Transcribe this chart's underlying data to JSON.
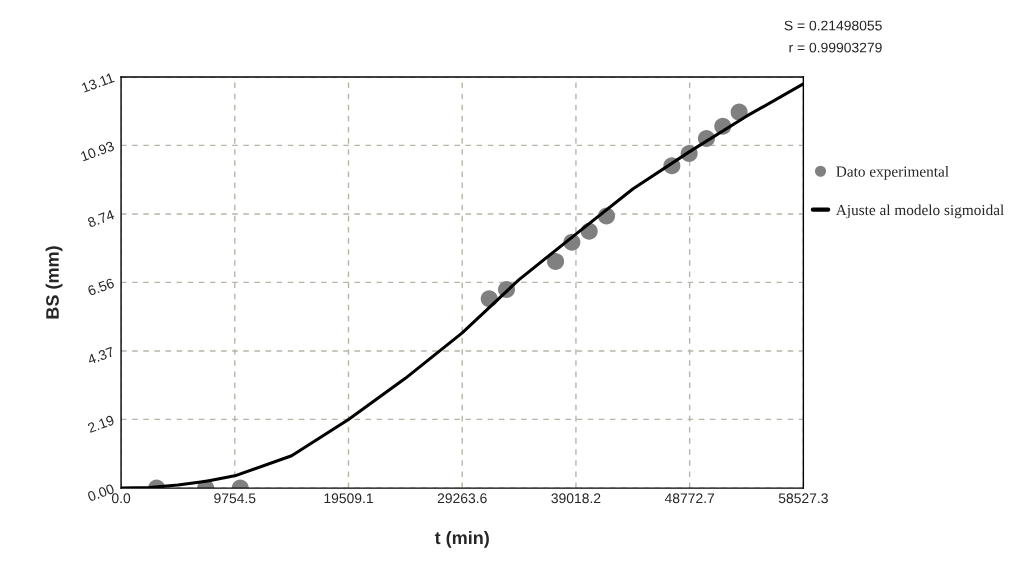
{
  "chart_data": {
    "type": "scatter",
    "xlabel": "t (min)",
    "ylabel": "BS (mm)",
    "annotations": [
      "S = 0.21498055",
      "r = 0.99903279"
    ],
    "series": [
      {
        "name": "Dato experimental",
        "color": "#808080",
        "marker": "circle",
        "x": [
          3051,
          7256,
          10224,
          31580,
          33065,
          37270,
          38672,
          40156,
          41640,
          47247,
          48731,
          50215,
          51616,
          53018
        ],
        "values": [
          0.0,
          0.0,
          0.0,
          6.04,
          6.33,
          7.23,
          7.84,
          8.19,
          8.68,
          10.28,
          10.67,
          11.15,
          11.54,
          11.99
        ]
      },
      {
        "name": "Ajuste al modelo sigmoidal",
        "type": "line",
        "color": "#000000",
        "marker": "none",
        "line_style": "solid",
        "x": [
          0,
          2438,
          4877,
          7316,
          9754,
          14631,
          19509,
          24386,
          29263,
          34141,
          39018,
          43895,
          48772,
          53650,
          58527
        ],
        "values": [
          0.0,
          0.02,
          0.1,
          0.22,
          0.39,
          1.03,
          2.19,
          3.5,
          4.95,
          6.65,
          8.1,
          9.54,
          10.73,
          11.86,
          12.89
        ]
      }
    ],
    "xlim": [
      0,
      58527.3
    ],
    "ylim": [
      0,
      13.11
    ],
    "xticks": [
      {
        "value": 0,
        "label": "0.0"
      },
      9754.5,
      19509.1,
      29263.6,
      39018.2,
      48772.7,
      58527.3
    ],
    "yticks": [
      {
        "value": 0,
        "label": "0.00"
      },
      2.19,
      4.37,
      6.56,
      8.74,
      10.93,
      13.11
    ],
    "grid": true,
    "legend": "right"
  }
}
